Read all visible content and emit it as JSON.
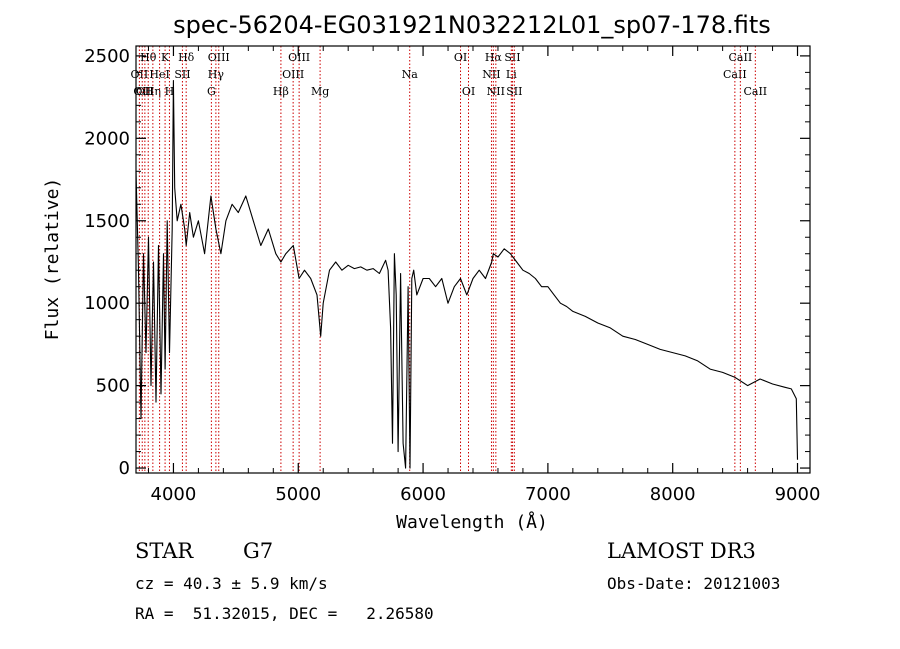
{
  "chart_data": {
    "type": "line",
    "title": "spec-56204-EG031921N032212L01_sp07-178.fits",
    "xlabel": "Wavelength (Å)",
    "ylabel": "Flux (relative)",
    "xlim": [
      3700,
      9100
    ],
    "ylim": [
      -30,
      2560
    ],
    "xticks": [
      4000,
      5000,
      6000,
      7000,
      8000,
      9000
    ],
    "yticks": [
      0,
      500,
      1000,
      1500,
      2000,
      2500
    ],
    "line_color": "#000000",
    "marker_color": "#cc0000",
    "series": [
      {
        "name": "flux",
        "x": [
          3700,
          3720,
          3740,
          3760,
          3780,
          3800,
          3820,
          3840,
          3860,
          3880,
          3900,
          3920,
          3933,
          3950,
          3968,
          3990,
          4000,
          4010,
          4030,
          4060,
          4090,
          4102,
          4130,
          4160,
          4200,
          4250,
          4300,
          4340,
          4380,
          4420,
          4470,
          4520,
          4580,
          4640,
          4700,
          4760,
          4820,
          4861,
          4900,
          4960,
          5007,
          5050,
          5100,
          5150,
          5180,
          5200,
          5250,
          5300,
          5350,
          5400,
          5450,
          5500,
          5550,
          5600,
          5650,
          5700,
          5720,
          5740,
          5755,
          5770,
          5785,
          5800,
          5820,
          5840,
          5860,
          5880,
          5895,
          5910,
          5925,
          5950,
          6000,
          6050,
          6100,
          6150,
          6200,
          6250,
          6300,
          6350,
          6400,
          6450,
          6500,
          6550,
          6563,
          6600,
          6650,
          6700,
          6750,
          6800,
          6850,
          6900,
          6950,
          7000,
          7050,
          7100,
          7150,
          7200,
          7300,
          7400,
          7500,
          7600,
          7700,
          7800,
          7900,
          8000,
          8100,
          8200,
          8300,
          8400,
          8500,
          8600,
          8700,
          8800,
          8900,
          8950,
          8990,
          9000
        ],
        "y": [
          1800,
          1200,
          300,
          1300,
          700,
          1400,
          500,
          1250,
          400,
          1350,
          450,
          1300,
          600,
          1500,
          700,
          1450,
          2350,
          1700,
          1500,
          1600,
          1450,
          1350,
          1550,
          1400,
          1500,
          1300,
          1650,
          1450,
          1300,
          1500,
          1600,
          1550,
          1650,
          1500,
          1350,
          1450,
          1300,
          1250,
          1300,
          1350,
          1150,
          1200,
          1150,
          1050,
          800,
          1000,
          1200,
          1250,
          1200,
          1230,
          1210,
          1220,
          1200,
          1210,
          1180,
          1260,
          1200,
          850,
          150,
          1300,
          1050,
          100,
          1180,
          150,
          0,
          1100,
          0,
          1150,
          1200,
          1050,
          1150,
          1150,
          1100,
          1150,
          1000,
          1100,
          1150,
          1050,
          1150,
          1200,
          1150,
          1250,
          1300,
          1280,
          1330,
          1300,
          1250,
          1200,
          1180,
          1150,
          1100,
          1100,
          1050,
          1000,
          980,
          950,
          920,
          880,
          850,
          800,
          780,
          750,
          720,
          700,
          680,
          650,
          600,
          580,
          550,
          500,
          540,
          510,
          490,
          480,
          420,
          50
        ]
      }
    ],
    "line_markers": [
      {
        "x": 3727,
        "label": "OII",
        "row": 2
      },
      {
        "x": 3750,
        "label": "OII",
        "row": 3
      },
      {
        "x": 3771,
        "label": "OII",
        "row": 3
      },
      {
        "x": 3798,
        "label": "Hθ",
        "row": 1
      },
      {
        "x": 3835,
        "label": "Hη",
        "row": 3
      },
      {
        "x": 3889,
        "label": "HeI",
        "row": 2
      },
      {
        "x": 3933,
        "label": "K",
        "row": 1
      },
      {
        "x": 3968,
        "label": "H",
        "row": 3
      },
      {
        "x": 4072,
        "label": "SII",
        "row": 2
      },
      {
        "x": 4102,
        "label": "Hδ",
        "row": 1
      },
      {
        "x": 4304,
        "label": "G",
        "row": 3
      },
      {
        "x": 4340,
        "label": "Hγ",
        "row": 2
      },
      {
        "x": 4363,
        "label": "OIII",
        "row": 1
      },
      {
        "x": 4861,
        "label": "Hβ",
        "row": 3
      },
      {
        "x": 4959,
        "label": "OIII",
        "row": 2
      },
      {
        "x": 5007,
        "label": "OIII",
        "row": 1
      },
      {
        "x": 5175,
        "label": "Mg",
        "row": 3
      },
      {
        "x": 5893,
        "label": "Na",
        "row": 2
      },
      {
        "x": 6300,
        "label": "OI",
        "row": 1
      },
      {
        "x": 6364,
        "label": "OI",
        "row": 3
      },
      {
        "x": 6548,
        "label": "NII",
        "row": 2
      },
      {
        "x": 6563,
        "label": "Hα",
        "row": 1
      },
      {
        "x": 6583,
        "label": "NII",
        "row": 3
      },
      {
        "x": 6707,
        "label": "Li",
        "row": 2
      },
      {
        "x": 6716,
        "label": "SII",
        "row": 1
      },
      {
        "x": 6731,
        "label": "SII",
        "row": 3
      },
      {
        "x": 8498,
        "label": "CaII",
        "row": 2
      },
      {
        "x": 8542,
        "label": "CaII",
        "row": 1
      },
      {
        "x": 8662,
        "label": "CaII",
        "row": 3
      }
    ]
  },
  "info": {
    "object_class": "STAR",
    "subclass": "G7",
    "redshift_line": "cz = 40.3 ± 5.9 km/s",
    "coords_line": "RA =  51.32015, DEC =   2.26580",
    "survey": "LAMOST DR3",
    "obs_date": "Obs-Date: 20121003"
  }
}
